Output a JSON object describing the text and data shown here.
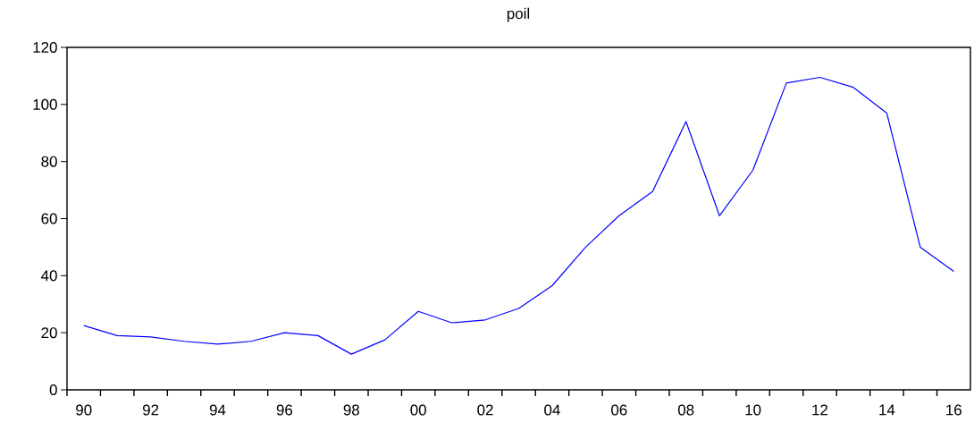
{
  "chart_data": {
    "type": "line",
    "title": "poil",
    "x": [
      1990,
      1991,
      1992,
      1993,
      1994,
      1995,
      1996,
      1997,
      1998,
      1999,
      2000,
      2001,
      2002,
      2003,
      2004,
      2005,
      2006,
      2007,
      2008,
      2009,
      2010,
      2011,
      2012,
      2013,
      2014,
      2015,
      2016
    ],
    "series": [
      {
        "color": "#0000ff",
        "values": [
          22.5,
          19,
          18.5,
          17,
          16,
          17,
          20,
          19,
          12.5,
          17.5,
          27.5,
          23.5,
          24.5,
          28.5,
          36.5,
          50,
          61,
          69.5,
          94,
          61,
          77,
          107.5,
          109.5,
          106,
          97,
          50,
          41.5
        ]
      }
    ],
    "xlim": [
      1989.5,
      2016.5
    ],
    "xticks": [
      {
        "value": 1990,
        "label": "90"
      },
      {
        "value": 1992,
        "label": "92"
      },
      {
        "value": 1994,
        "label": "94"
      },
      {
        "value": 1996,
        "label": "96"
      },
      {
        "value": 1998,
        "label": "98"
      },
      {
        "value": 2000,
        "label": "00"
      },
      {
        "value": 2002,
        "label": "02"
      },
      {
        "value": 2004,
        "label": "04"
      },
      {
        "value": 2006,
        "label": "06"
      },
      {
        "value": 2008,
        "label": "08"
      },
      {
        "value": 2010,
        "label": "10"
      },
      {
        "value": 2012,
        "label": "12"
      },
      {
        "value": 2014,
        "label": "14"
      },
      {
        "value": 2016,
        "label": "16"
      },
      {
        "value": 1989.5,
        "label": null
      },
      {
        "value": 1990.5,
        "label": null
      },
      {
        "value": 1991.5,
        "label": null
      },
      {
        "value": 1992.5,
        "label": null
      },
      {
        "value": 1993.5,
        "label": null
      },
      {
        "value": 1994.5,
        "label": null
      },
      {
        "value": 1995.5,
        "label": null
      },
      {
        "value": 1996.5,
        "label": null
      },
      {
        "value": 1997.5,
        "label": null
      },
      {
        "value": 1998.5,
        "label": null
      },
      {
        "value": 1999.5,
        "label": null
      },
      {
        "value": 2000.5,
        "label": null
      },
      {
        "value": 2001.5,
        "label": null
      },
      {
        "value": 2002.5,
        "label": null
      },
      {
        "value": 2003.5,
        "label": null
      },
      {
        "value": 2004.5,
        "label": null
      },
      {
        "value": 2005.5,
        "label": null
      },
      {
        "value": 2006.5,
        "label": null
      },
      {
        "value": 2007.5,
        "label": null
      },
      {
        "value": 2008.5,
        "label": null
      },
      {
        "value": 2009.5,
        "label": null
      },
      {
        "value": 2010.5,
        "label": null
      },
      {
        "value": 2011.5,
        "label": null
      },
      {
        "value": 2012.5,
        "label": null
      },
      {
        "value": 2013.5,
        "label": null
      },
      {
        "value": 2014.5,
        "label": null
      },
      {
        "value": 2015.5,
        "label": null
      }
    ],
    "ylim": [
      0,
      120
    ],
    "yticks": [
      0,
      20,
      40,
      60,
      80,
      100,
      120
    ]
  }
}
